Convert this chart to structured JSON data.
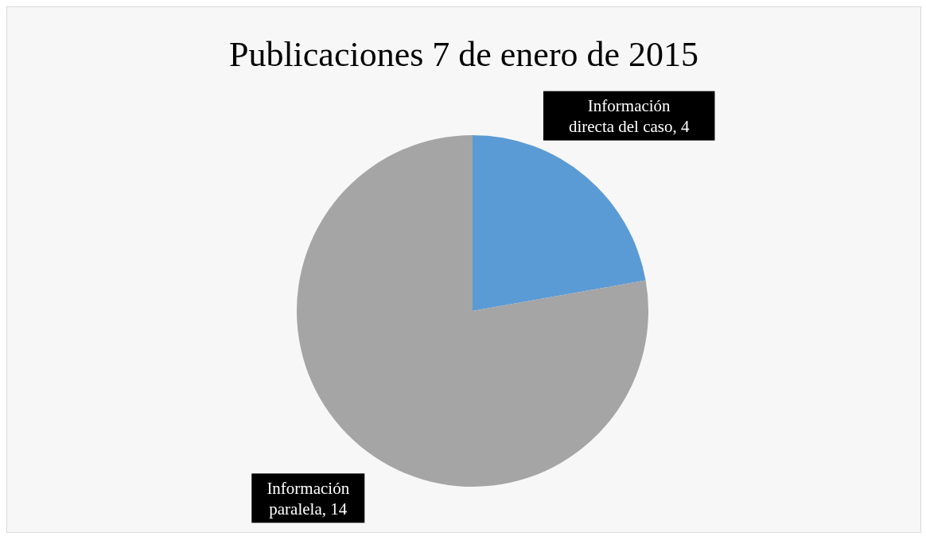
{
  "chart_data": {
    "type": "pie",
    "title": "Publicaciones 7 de enero de 2015",
    "categories": [
      "Información directa del caso",
      "Información paralela"
    ],
    "values": [
      4,
      14
    ],
    "value_labels": [
      ", 4",
      ", 14"
    ],
    "colors": [
      "#5b9bd5",
      "#a5a5a5"
    ]
  }
}
